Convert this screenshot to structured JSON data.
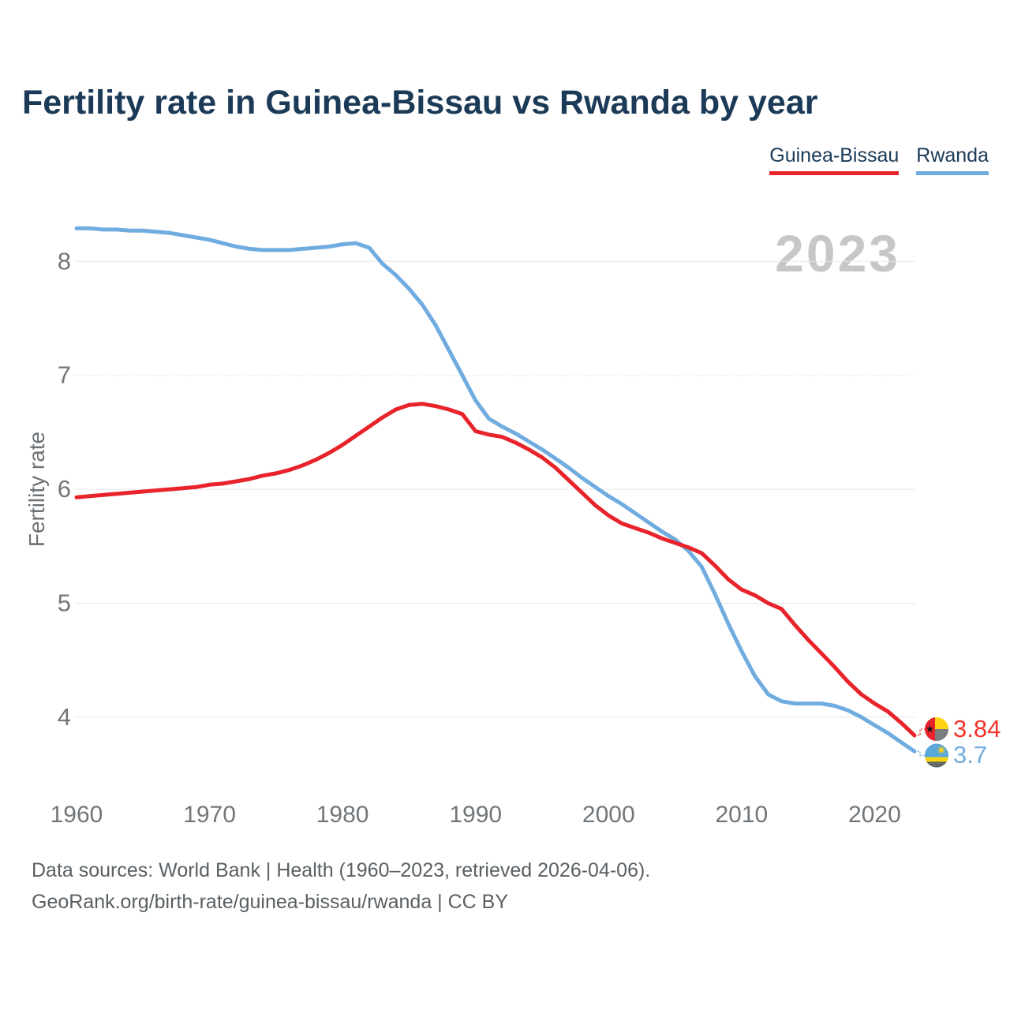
{
  "page": {
    "title": "Fertility rate in Guinea-Bissau vs Rwanda by year",
    "watermark": "2023",
    "footer_line1": "Data sources: World Bank | Health (1960–2023, retrieved 2026-04-06).",
    "footer_line2": "GeoRank.org/birth-rate/guinea-bissau/rwanda | CC BY"
  },
  "chart_data": {
    "type": "line",
    "title": "Fertility rate in Guinea-Bissau vs Rwanda by year",
    "xlabel": "",
    "ylabel": "Fertility rate",
    "grid": true,
    "legend_position": "top-right",
    "xlim": [
      1960,
      2023
    ],
    "ylim": [
      3.6,
      8.45
    ],
    "x_ticks": [
      1960,
      1970,
      1980,
      1990,
      2000,
      2010,
      2020
    ],
    "y_ticks": [
      4,
      5,
      6,
      7,
      8
    ],
    "x": [
      1960,
      1961,
      1962,
      1963,
      1964,
      1965,
      1966,
      1967,
      1968,
      1969,
      1970,
      1971,
      1972,
      1973,
      1974,
      1975,
      1976,
      1977,
      1978,
      1979,
      1980,
      1981,
      1982,
      1983,
      1984,
      1985,
      1986,
      1987,
      1988,
      1989,
      1990,
      1991,
      1992,
      1993,
      1994,
      1995,
      1996,
      1997,
      1998,
      1999,
      2000,
      2001,
      2002,
      2003,
      2004,
      2005,
      2006,
      2007,
      2008,
      2009,
      2010,
      2011,
      2012,
      2013,
      2014,
      2015,
      2016,
      2017,
      2018,
      2019,
      2020,
      2021,
      2022,
      2023
    ],
    "series": [
      {
        "name": "Guinea-Bissau",
        "color": "#e8232b",
        "end_label": "3.84",
        "final_year": "2023",
        "values": [
          5.93,
          5.94,
          5.95,
          5.96,
          5.97,
          5.98,
          5.99,
          6.0,
          6.01,
          6.02,
          6.04,
          6.05,
          6.07,
          6.09,
          6.12,
          6.14,
          6.17,
          6.21,
          6.26,
          6.32,
          6.39,
          6.47,
          6.55,
          6.63,
          6.7,
          6.74,
          6.75,
          6.73,
          6.7,
          6.66,
          6.51,
          6.48,
          6.46,
          6.41,
          6.35,
          6.28,
          6.19,
          6.08,
          5.97,
          5.86,
          5.77,
          5.7,
          5.66,
          5.62,
          5.57,
          5.53,
          5.49,
          5.44,
          5.33,
          5.21,
          5.12,
          5.07,
          5.0,
          4.95,
          4.81,
          4.68,
          4.56,
          4.44,
          4.31,
          4.2,
          4.12,
          4.05,
          3.95,
          3.84
        ]
      },
      {
        "name": "Rwanda",
        "color": "#70acdf",
        "end_label": "3.7",
        "final_year": "2023",
        "values": [
          8.29,
          8.29,
          8.28,
          8.28,
          8.27,
          8.27,
          8.26,
          8.25,
          8.23,
          8.21,
          8.19,
          8.16,
          8.13,
          8.11,
          8.1,
          8.1,
          8.1,
          8.11,
          8.12,
          8.13,
          8.15,
          8.16,
          8.12,
          7.98,
          7.88,
          7.76,
          7.62,
          7.44,
          7.22,
          7.0,
          6.78,
          6.62,
          6.55,
          6.49,
          6.42,
          6.35,
          6.27,
          6.19,
          6.1,
          6.02,
          5.94,
          5.87,
          5.79,
          5.71,
          5.63,
          5.56,
          5.46,
          5.32,
          5.08,
          4.82,
          4.58,
          4.36,
          4.2,
          4.14,
          4.12,
          4.12,
          4.12,
          4.1,
          4.06,
          4.0,
          3.93,
          3.86,
          3.78,
          3.7
        ]
      }
    ]
  }
}
